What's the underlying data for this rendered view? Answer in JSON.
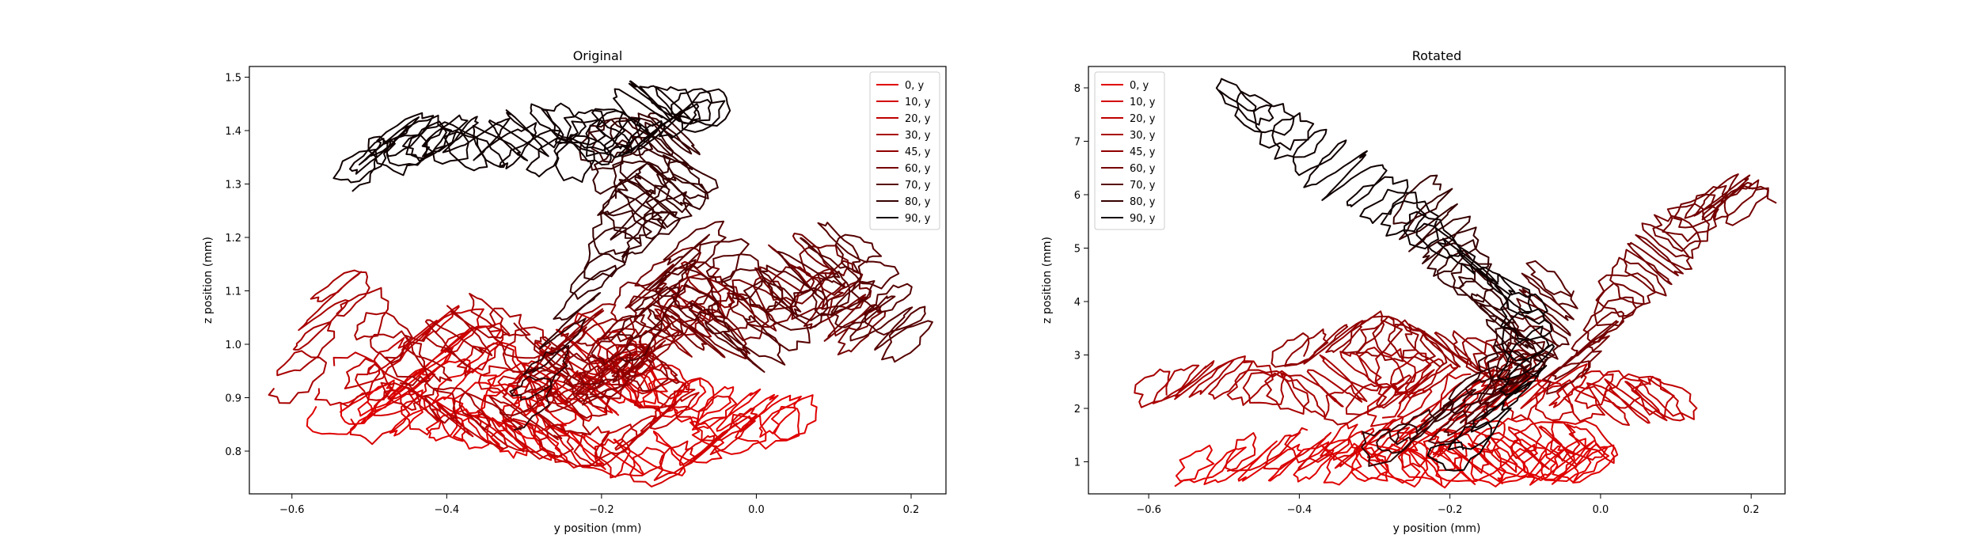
{
  "chart_data": [
    {
      "type": "line",
      "title": "Original",
      "xlabel": "y position (mm)",
      "ylabel": "z position (mm)",
      "xlim": [
        -0.655,
        0.245
      ],
      "ylim": [
        0.72,
        1.52
      ],
      "xticks": [
        -0.6,
        -0.4,
        -0.2,
        0.0,
        0.2
      ],
      "xtick_labels": [
        "−0.6",
        "−0.4",
        "−0.2",
        "0.0",
        "0.2"
      ],
      "yticks": [
        0.8,
        0.9,
        1.0,
        1.1,
        1.2,
        1.3,
        1.4,
        1.5
      ],
      "ytick_labels": [
        "0.8",
        "0.9",
        "1.0",
        "1.1",
        "1.2",
        "1.3",
        "1.4",
        "1.5"
      ],
      "grid": false,
      "legend_position": "top-right",
      "series": [
        {
          "name": "0, y",
          "color": "#e00000",
          "path": [
            [
              -0.55,
              0.85
            ],
            [
              -0.42,
              0.95
            ],
            [
              -0.3,
              0.86
            ],
            [
              -0.18,
              0.93
            ],
            [
              -0.05,
              0.88
            ],
            [
              0.06,
              0.86
            ],
            [
              -0.15,
              0.79
            ],
            [
              -0.35,
              0.83
            ],
            [
              -0.52,
              0.9
            ]
          ]
        },
        {
          "name": "10, y",
          "color": "#d40000",
          "path": [
            [
              -0.5,
              0.84
            ],
            [
              -0.38,
              1.02
            ],
            [
              -0.26,
              0.87
            ],
            [
              -0.14,
              0.95
            ],
            [
              -0.02,
              0.84
            ],
            [
              -0.12,
              0.77
            ],
            [
              -0.3,
              0.82
            ],
            [
              -0.46,
              0.88
            ]
          ]
        },
        {
          "name": "20, y",
          "color": "#c00000",
          "path": [
            [
              -0.54,
              0.91
            ],
            [
              -0.4,
              1.05
            ],
            [
              -0.3,
              0.9
            ],
            [
              -0.2,
              1.02
            ],
            [
              -0.1,
              0.88
            ],
            [
              -0.2,
              0.8
            ],
            [
              -0.38,
              0.85
            ],
            [
              -0.52,
              0.95
            ]
          ]
        },
        {
          "name": "30, y",
          "color": "#a80000",
          "path": [
            [
              -0.6,
              0.92
            ],
            [
              -0.54,
              1.12
            ],
            [
              -0.44,
              0.95
            ],
            [
              -0.34,
              1.06
            ],
            [
              -0.24,
              0.9
            ],
            [
              -0.16,
              0.98
            ],
            [
              -0.26,
              0.85
            ],
            [
              -0.44,
              0.9
            ]
          ]
        },
        {
          "name": "45, y",
          "color": "#900000",
          "path": [
            [
              -0.3,
              0.9
            ],
            [
              -0.22,
              1.05
            ],
            [
              -0.14,
              0.94
            ],
            [
              -0.06,
              1.12
            ],
            [
              -0.12,
              1.0
            ],
            [
              -0.2,
              0.92
            ],
            [
              -0.28,
              1.0
            ]
          ]
        },
        {
          "name": "60, y",
          "color": "#740000",
          "path": [
            [
              -0.2,
              0.95
            ],
            [
              -0.12,
              1.15
            ],
            [
              -0.02,
              1.05
            ],
            [
              0.08,
              1.18
            ],
            [
              0.14,
              1.02
            ],
            [
              0.05,
              1.12
            ],
            [
              -0.06,
              1.0
            ],
            [
              -0.16,
              1.08
            ]
          ]
        },
        {
          "name": "70, y",
          "color": "#560000",
          "path": [
            [
              -0.16,
              1.0
            ],
            [
              -0.08,
              1.2
            ],
            [
              0.02,
              1.08
            ],
            [
              0.12,
              1.2
            ],
            [
              0.2,
              1.0
            ],
            [
              0.1,
              1.1
            ],
            [
              -0.02,
              0.98
            ],
            [
              -0.1,
              1.12
            ]
          ]
        },
        {
          "name": "80, y",
          "color": "#360000",
          "path": [
            [
              -0.3,
              0.88
            ],
            [
              -0.22,
              1.1
            ],
            [
              -0.16,
              1.25
            ],
            [
              -0.08,
              1.32
            ],
            [
              -0.14,
              1.2
            ],
            [
              -0.2,
              1.38
            ],
            [
              -0.1,
              1.4
            ],
            [
              -0.16,
              1.3
            ]
          ]
        },
        {
          "name": "90, y",
          "color": "#100000",
          "path": [
            [
              -0.52,
              1.32
            ],
            [
              -0.46,
              1.4
            ],
            [
              -0.36,
              1.36
            ],
            [
              -0.26,
              1.42
            ],
            [
              -0.16,
              1.38
            ],
            [
              -0.06,
              1.44
            ],
            [
              -0.14,
              1.46
            ],
            [
              -0.24,
              1.34
            ],
            [
              -0.38,
              1.4
            ],
            [
              -0.48,
              1.35
            ]
          ]
        }
      ]
    },
    {
      "type": "line",
      "title": "Rotated",
      "xlabel": "y position (mm)",
      "ylabel": "z position (mm)",
      "xlim": [
        -0.68,
        0.245
      ],
      "ylim": [
        0.4,
        8.4
      ],
      "xticks": [
        -0.6,
        -0.4,
        -0.2,
        0.0,
        0.2
      ],
      "xtick_labels": [
        "−0.6",
        "−0.4",
        "−0.2",
        "0.0",
        "0.2"
      ],
      "yticks": [
        1,
        2,
        3,
        4,
        5,
        6,
        7,
        8
      ],
      "ytick_labels": [
        "1",
        "2",
        "3",
        "4",
        "5",
        "6",
        "7",
        "8"
      ],
      "grid": false,
      "legend_position": "top-left",
      "series": [
        {
          "name": "0, y",
          "color": "#e00000",
          "path": [
            [
              -0.56,
              0.9
            ],
            [
              -0.4,
              1.0
            ],
            [
              -0.25,
              0.95
            ],
            [
              -0.1,
              1.05
            ],
            [
              0.0,
              1.0
            ],
            [
              -0.15,
              0.9
            ],
            [
              -0.35,
              0.95
            ]
          ]
        },
        {
          "name": "10, y",
          "color": "#d40000",
          "path": [
            [
              -0.5,
              1.1
            ],
            [
              -0.3,
              1.3
            ],
            [
              -0.15,
              1.2
            ],
            [
              0.0,
              1.4
            ],
            [
              -0.2,
              1.5
            ],
            [
              -0.4,
              1.3
            ]
          ]
        },
        {
          "name": "20, y",
          "color": "#c00000",
          "path": [
            [
              -0.3,
              2.0
            ],
            [
              -0.15,
              2.2
            ],
            [
              0.0,
              2.1
            ],
            [
              0.1,
              2.2
            ],
            [
              -0.05,
              2.4
            ],
            [
              -0.2,
              2.3
            ]
          ]
        },
        {
          "name": "30, y",
          "color": "#a80000",
          "path": [
            [
              -0.6,
              2.4
            ],
            [
              -0.5,
              2.6
            ],
            [
              -0.4,
              2.2
            ],
            [
              -0.3,
              2.8
            ],
            [
              -0.22,
              2.5
            ],
            [
              -0.35,
              2.0
            ]
          ]
        },
        {
          "name": "45, y",
          "color": "#900000",
          "path": [
            [
              -0.42,
              3.0
            ],
            [
              -0.32,
              3.4
            ],
            [
              -0.24,
              3.2
            ],
            [
              -0.16,
              3.0
            ],
            [
              -0.1,
              2.6
            ]
          ]
        },
        {
          "name": "60, y",
          "color": "#740000",
          "path": [
            [
              -0.05,
              2.5
            ],
            [
              0.0,
              3.5
            ],
            [
              0.05,
              4.5
            ],
            [
              0.1,
              5.2
            ],
            [
              0.15,
              6.0
            ],
            [
              0.2,
              5.8
            ]
          ]
        },
        {
          "name": "70, y",
          "color": "#560000",
          "path": [
            [
              -0.2,
              1.5
            ],
            [
              -0.12,
              2.5
            ],
            [
              -0.08,
              3.5
            ],
            [
              -0.06,
              4.5
            ]
          ]
        },
        {
          "name": "80, y",
          "color": "#360000",
          "path": [
            [
              -0.3,
              1.2
            ],
            [
              -0.2,
              2.0
            ],
            [
              -0.1,
              3.0
            ],
            [
              -0.15,
              4.0
            ],
            [
              -0.2,
              5.0
            ],
            [
              -0.25,
              6.0
            ]
          ]
        },
        {
          "name": "90, y",
          "color": "#100000",
          "path": [
            [
              -0.2,
              1.0
            ],
            [
              -0.1,
              2.5
            ],
            [
              -0.1,
              4.0
            ],
            [
              -0.2,
              5.0
            ],
            [
              -0.3,
              6.0
            ],
            [
              -0.4,
              7.0
            ],
            [
              -0.5,
              8.0
            ]
          ]
        }
      ]
    }
  ]
}
